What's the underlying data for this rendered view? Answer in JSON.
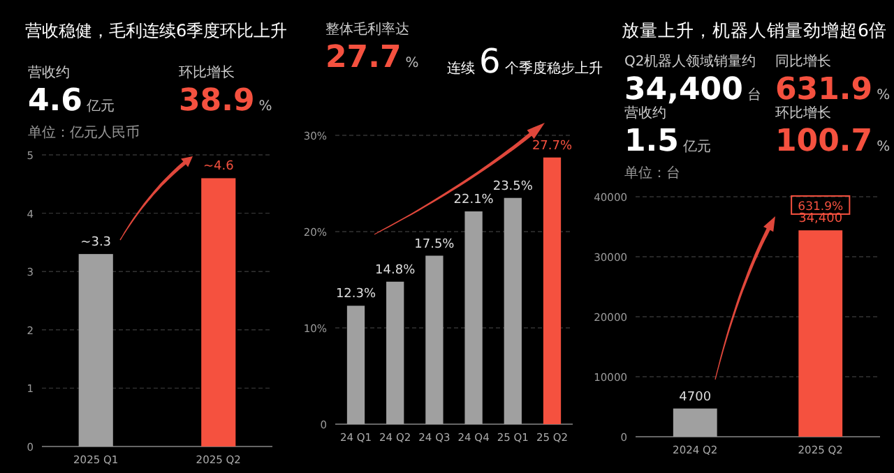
{
  "chart_data": [
    {
      "type": "bar",
      "title": "营收稳健，毛利连续6季度环比上升",
      "categories": [
        "2025 Q1",
        "2025 Q2"
      ],
      "values": [
        3.3,
        4.6
      ],
      "colors": [
        "#a0a0a0",
        "#f5513f"
      ],
      "value_labels": [
        "~3.3",
        "~4.6"
      ],
      "ylim": [
        0,
        5
      ],
      "yticks": [
        0,
        1,
        2,
        3,
        4,
        5
      ],
      "grid": "y",
      "annotations": [
        "营收约",
        "4.6",
        "亿元",
        "环比增长",
        "38.9",
        "%",
        "单位：亿元人民币"
      ]
    },
    {
      "type": "bar",
      "categories": [
        "24 Q1",
        "24 Q2",
        "24 Q3",
        "24 Q4",
        "25 Q1",
        "25 Q2"
      ],
      "values": [
        12.3,
        14.8,
        17.5,
        22.1,
        23.5,
        27.7
      ],
      "colors": [
        "#a0a0a0",
        "#a0a0a0",
        "#a0a0a0",
        "#a0a0a0",
        "#a0a0a0",
        "#f5513f"
      ],
      "value_labels": [
        "12.3%",
        "14.8%",
        "17.5%",
        "22.1%",
        "23.5%",
        "27.7%"
      ],
      "ylim": [
        0,
        30
      ],
      "yticks": [
        0,
        {
          "value": 10,
          "label": "10%"
        },
        {
          "value": 20,
          "label": "20%"
        },
        {
          "value": 30,
          "label": "30%"
        }
      ],
      "grid": "y",
      "annotations": [
        "整体毛利率达",
        "27.7",
        "%",
        "连续",
        "6",
        "个季度稳步上升"
      ]
    },
    {
      "type": "bar",
      "title": "放量上升，机器人销量劲增超6倍",
      "categories": [
        "2024 Q2",
        "2025 Q2"
      ],
      "values": [
        4700,
        34400
      ],
      "colors": [
        "#a0a0a0",
        "#f5513f"
      ],
      "value_labels": [
        "4700",
        "34,400"
      ],
      "ylim": [
        0,
        40000
      ],
      "yticks": [
        0,
        10000,
        20000,
        30000,
        40000
      ],
      "grid": "y",
      "annotations": [
        "Q2机器人领域销量约",
        "34,400",
        "台",
        "同比增长",
        "631.9",
        "%",
        "营收约",
        "1.5",
        "亿元",
        "环比增长",
        "100.7",
        "%",
        "单位：台",
        {
          "text": "631.9%",
          "x": "2025 Q2",
          "y": 38500
        }
      ]
    }
  ]
}
